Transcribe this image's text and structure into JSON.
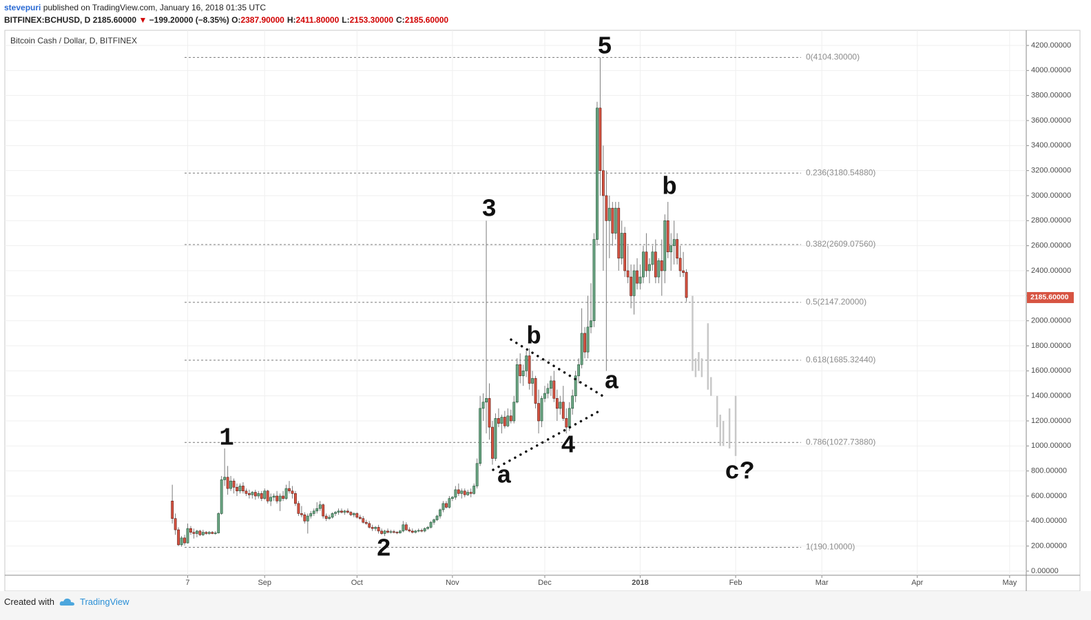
{
  "header": {
    "user": "stevepuri",
    "published": " published on TradingView.com, January 16, 2018 01:35 UTC",
    "symbol": "BITFINEX:BCHUSD, D",
    "price": "2185.60000",
    "arrow": "▼",
    "change": "−199.20000 (−8.35%)",
    "ohlc": [
      {
        "key": "O:",
        "value": "2387.90000"
      },
      {
        "key": "H:",
        "value": "2411.80000"
      },
      {
        "key": "L:",
        "value": "2153.30000"
      },
      {
        "key": "C:",
        "value": "2185.60000"
      }
    ]
  },
  "footer": {
    "created": "Created with",
    "brand": "TradingView"
  },
  "chart_data": {
    "type": "candlestick",
    "title": "Bitcoin Cash / Dollar, D, BITFINEX",
    "up_color": "#6ba583",
    "down_color": "#d75442",
    "projection_color": "#c8c8c8",
    "xlim": [
      -54.4,
      277.4
    ],
    "xticks": [
      {
        "value": 5,
        "label": "7"
      },
      {
        "value": 30,
        "label": "Sep"
      },
      {
        "value": 60,
        "label": "Oct"
      },
      {
        "value": 91,
        "label": "Nov"
      },
      {
        "value": 121,
        "label": "Dec"
      },
      {
        "value": 152,
        "label": "2018"
      },
      {
        "value": 183,
        "label": "Feb"
      },
      {
        "value": 211,
        "label": "Mar"
      },
      {
        "value": 242,
        "label": "Apr"
      },
      {
        "value": 272,
        "label": "May"
      }
    ],
    "ylim": [
      -33,
      4321
    ],
    "yticks": [
      {
        "value": 0,
        "label": "0.00000"
      },
      {
        "value": 200,
        "label": "200.00000"
      },
      {
        "value": 400,
        "label": "400.00000"
      },
      {
        "value": 600,
        "label": "600.00000"
      },
      {
        "value": 800,
        "label": "800.00000"
      },
      {
        "value": 1000,
        "label": "1000.00000"
      },
      {
        "value": 1200,
        "label": "1200.00000"
      },
      {
        "value": 1400,
        "label": "1400.00000"
      },
      {
        "value": 1600,
        "label": "1600.00000"
      },
      {
        "value": 1800,
        "label": "1800.00000"
      },
      {
        "value": 2000,
        "label": "2000.00000"
      },
      {
        "value": 2200,
        "label": "2200.00000"
      },
      {
        "value": 2400,
        "label": "2400.00000"
      },
      {
        "value": 2600,
        "label": "2600.00000"
      },
      {
        "value": 2800,
        "label": "2800.00000"
      },
      {
        "value": 3000,
        "label": "3000.00000"
      },
      {
        "value": 3200,
        "label": "3200.00000"
      },
      {
        "value": 3400,
        "label": "3400.00000"
      },
      {
        "value": 3600,
        "label": "3600.00000"
      },
      {
        "value": 3800,
        "label": "3800.00000"
      },
      {
        "value": 4000,
        "label": "4000.00000"
      },
      {
        "value": 4200,
        "label": "4200.00000"
      }
    ],
    "grid": true,
    "last_price": {
      "value": 2185.6,
      "label": "2185.60000"
    },
    "fib": [
      {
        "value": 4104.3,
        "label": "0(4104.30000)"
      },
      {
        "value": 3180.5488,
        "label": "0.236(3180.54880)"
      },
      {
        "value": 2609.0756,
        "label": "0.382(2609.07560)"
      },
      {
        "value": 2147.2,
        "label": "0.5(2147.20000)"
      },
      {
        "value": 1685.3244,
        "label": "0.618(1685.32440)"
      },
      {
        "value": 1027.7388,
        "label": "0.786(1027.73880)"
      },
      {
        "value": 190.1,
        "label": "1(190.10000)"
      }
    ],
    "waves": [
      "1",
      "2",
      "3",
      "4",
      "5",
      "a",
      "b",
      "a",
      "b",
      "c?"
    ],
    "ohlc": [
      [
        560,
        690,
        380,
        420
      ],
      [
        420,
        460,
        290,
        330
      ],
      [
        330,
        350,
        200,
        210
      ],
      [
        210,
        280,
        195,
        265
      ],
      [
        265,
        290,
        205,
        225
      ],
      [
        225,
        380,
        220,
        340
      ],
      [
        340,
        360,
        290,
        310
      ],
      [
        310,
        340,
        260,
        300
      ],
      [
        300,
        330,
        270,
        320
      ],
      [
        320,
        330,
        280,
        290
      ],
      [
        290,
        330,
        280,
        310
      ],
      [
        310,
        320,
        290,
        300
      ],
      [
        300,
        320,
        290,
        310
      ],
      [
        310,
        320,
        295,
        300
      ],
      [
        300,
        320,
        290,
        305
      ],
      [
        305,
        470,
        300,
        460
      ],
      [
        460,
        760,
        450,
        730
      ],
      [
        730,
        980,
        680,
        750
      ],
      [
        750,
        840,
        610,
        660
      ],
      [
        660,
        760,
        640,
        720
      ],
      [
        720,
        740,
        620,
        670
      ],
      [
        670,
        700,
        600,
        640
      ],
      [
        640,
        700,
        620,
        680
      ],
      [
        680,
        710,
        620,
        640
      ],
      [
        640,
        660,
        600,
        620
      ],
      [
        620,
        650,
        580,
        610
      ],
      [
        610,
        640,
        580,
        630
      ],
      [
        630,
        650,
        570,
        600
      ],
      [
        600,
        640,
        580,
        620
      ],
      [
        620,
        640,
        560,
        580
      ],
      [
        580,
        660,
        570,
        640
      ],
      [
        640,
        650,
        540,
        560
      ],
      [
        560,
        620,
        520,
        590
      ],
      [
        590,
        620,
        560,
        600
      ],
      [
        600,
        640,
        540,
        560
      ],
      [
        560,
        620,
        480,
        600
      ],
      [
        600,
        640,
        560,
        580
      ],
      [
        580,
        690,
        570,
        660
      ],
      [
        660,
        720,
        620,
        640
      ],
      [
        640,
        680,
        580,
        620
      ],
      [
        620,
        640,
        520,
        540
      ],
      [
        540,
        560,
        440,
        460
      ],
      [
        460,
        520,
        430,
        450
      ],
      [
        450,
        470,
        380,
        400
      ],
      [
        400,
        460,
        300,
        440
      ],
      [
        440,
        480,
        420,
        460
      ],
      [
        460,
        500,
        440,
        480
      ],
      [
        480,
        550,
        460,
        500
      ],
      [
        500,
        560,
        480,
        530
      ],
      [
        530,
        540,
        420,
        440
      ],
      [
        440,
        460,
        400,
        420
      ],
      [
        420,
        450,
        410,
        430
      ],
      [
        430,
        470,
        420,
        460
      ],
      [
        460,
        480,
        440,
        470
      ],
      [
        470,
        500,
        450,
        480
      ],
      [
        480,
        500,
        460,
        470
      ],
      [
        470,
        490,
        450,
        480
      ],
      [
        480,
        500,
        460,
        470
      ],
      [
        470,
        480,
        440,
        450
      ],
      [
        450,
        470,
        430,
        460
      ],
      [
        460,
        470,
        420,
        430
      ],
      [
        430,
        450,
        410,
        420
      ],
      [
        420,
        440,
        380,
        390
      ],
      [
        390,
        410,
        370,
        380
      ],
      [
        380,
        400,
        340,
        350
      ],
      [
        350,
        370,
        320,
        340
      ],
      [
        340,
        360,
        320,
        350
      ],
      [
        350,
        370,
        300,
        320
      ],
      [
        320,
        340,
        290,
        300
      ],
      [
        300,
        330,
        280,
        320
      ],
      [
        320,
        340,
        300,
        310
      ],
      [
        310,
        330,
        300,
        315
      ],
      [
        315,
        330,
        300,
        310
      ],
      [
        310,
        320,
        295,
        305
      ],
      [
        305,
        330,
        300,
        320
      ],
      [
        320,
        400,
        310,
        370
      ],
      [
        370,
        390,
        320,
        330
      ],
      [
        330,
        350,
        310,
        320
      ],
      [
        320,
        340,
        300,
        310
      ],
      [
        310,
        330,
        300,
        320
      ],
      [
        320,
        340,
        310,
        325
      ],
      [
        325,
        340,
        310,
        320
      ],
      [
        320,
        350,
        310,
        340
      ],
      [
        340,
        360,
        330,
        350
      ],
      [
        350,
        400,
        340,
        390
      ],
      [
        390,
        420,
        370,
        410
      ],
      [
        410,
        450,
        400,
        440
      ],
      [
        440,
        500,
        420,
        490
      ],
      [
        490,
        560,
        470,
        540
      ],
      [
        540,
        560,
        500,
        510
      ],
      [
        510,
        600,
        500,
        580
      ],
      [
        580,
        600,
        560,
        590
      ],
      [
        590,
        680,
        570,
        650
      ],
      [
        650,
        700,
        600,
        620
      ],
      [
        620,
        660,
        580,
        640
      ],
      [
        640,
        660,
        590,
        610
      ],
      [
        610,
        650,
        600,
        630
      ],
      [
        630,
        660,
        590,
        620
      ],
      [
        620,
        700,
        610,
        680
      ],
      [
        680,
        900,
        660,
        860
      ],
      [
        860,
        1400,
        840,
        1300
      ],
      [
        1300,
        1420,
        1200,
        1350
      ],
      [
        1350,
        2800,
        1100,
        1380
      ],
      [
        1380,
        1500,
        1050,
        1150
      ],
      [
        1150,
        1200,
        850,
        900
      ],
      [
        900,
        1260,
        880,
        1220
      ],
      [
        1220,
        1300,
        1150,
        1180
      ],
      [
        1180,
        1250,
        1100,
        1230
      ],
      [
        1230,
        1280,
        1140,
        1160
      ],
      [
        1160,
        1300,
        1150,
        1240
      ],
      [
        1240,
        1290,
        1180,
        1200
      ],
      [
        1200,
        1400,
        1180,
        1350
      ],
      [
        1350,
        1700,
        1340,
        1650
      ],
      [
        1650,
        1740,
        1500,
        1560
      ],
      [
        1560,
        1650,
        1480,
        1600
      ],
      [
        1600,
        1760,
        1550,
        1720
      ],
      [
        1720,
        1780,
        1450,
        1500
      ],
      [
        1500,
        1600,
        1400,
        1540
      ],
      [
        1540,
        1560,
        1300,
        1340
      ],
      [
        1340,
        1450,
        1100,
        1200
      ],
      [
        1200,
        1400,
        1150,
        1380
      ],
      [
        1380,
        1480,
        1350,
        1420
      ],
      [
        1420,
        1500,
        1380,
        1460
      ],
      [
        1460,
        1560,
        1400,
        1520
      ],
      [
        1520,
        1600,
        1350,
        1380
      ],
      [
        1380,
        1450,
        1200,
        1300
      ],
      [
        1300,
        1400,
        1250,
        1350
      ],
      [
        1350,
        1480,
        1200,
        1220
      ],
      [
        1220,
        1300,
        1100,
        1150
      ],
      [
        1150,
        1350,
        1120,
        1300
      ],
      [
        1300,
        1450,
        1250,
        1400
      ],
      [
        1400,
        1600,
        1350,
        1560
      ],
      [
        1560,
        1700,
        1500,
        1650
      ],
      [
        1650,
        2100,
        1620,
        1900
      ],
      [
        1900,
        1950,
        1700,
        1750
      ],
      [
        1750,
        2200,
        1700,
        1950
      ],
      [
        1950,
        2300,
        1900,
        2000
      ],
      [
        2000,
        2700,
        1950,
        2650
      ],
      [
        2650,
        3750,
        2600,
        3700
      ],
      [
        3700,
        4104,
        3000,
        3200
      ],
      [
        3200,
        3400,
        2400,
        3000
      ],
      [
        3000,
        3200,
        1600,
        2800
      ],
      [
        2800,
        3000,
        2500,
        2900
      ],
      [
        2900,
        2950,
        2600,
        2700
      ],
      [
        2700,
        2950,
        2650,
        2900
      ],
      [
        2900,
        2950,
        2400,
        2500
      ],
      [
        2500,
        2800,
        2450,
        2700
      ],
      [
        2700,
        2750,
        2350,
        2400
      ],
      [
        2400,
        2600,
        2300,
        2350
      ],
      [
        2350,
        2450,
        2100,
        2200
      ],
      [
        2200,
        2450,
        2050,
        2400
      ],
      [
        2400,
        2500,
        2250,
        2300
      ],
      [
        2300,
        2450,
        2250,
        2350
      ],
      [
        2350,
        2600,
        2300,
        2550
      ],
      [
        2550,
        2700,
        2350,
        2400
      ],
      [
        2400,
        2500,
        2300,
        2450
      ],
      [
        2450,
        2600,
        2400,
        2550
      ],
      [
        2550,
        2650,
        2300,
        2350
      ],
      [
        2350,
        2500,
        2300,
        2480
      ],
      [
        2480,
        2650,
        2200,
        2400
      ],
      [
        2400,
        2850,
        2300,
        2800
      ],
      [
        2800,
        2950,
        2500,
        2550
      ],
      [
        2550,
        2700,
        2400,
        2600
      ],
      [
        2600,
        2800,
        2450,
        2650
      ],
      [
        2650,
        2700,
        2450,
        2500
      ],
      [
        2500,
        2600,
        2350,
        2400
      ],
      [
        2400,
        2550,
        2350,
        2384.8
      ],
      [
        2387.9,
        2411.8,
        2153.3,
        2185.6
      ]
    ],
    "projection": {
      "x": [
        169,
        170,
        171,
        172,
        174,
        175,
        177,
        178,
        179,
        181,
        183
      ],
      "high": [
        2200,
        1700,
        1750,
        1700,
        1980,
        1550,
        1400,
        1250,
        1200,
        1300,
        1400
      ],
      "low": [
        1600,
        1550,
        1600,
        1550,
        1450,
        1400,
        1150,
        1000,
        1000,
        980,
        920
      ]
    }
  }
}
